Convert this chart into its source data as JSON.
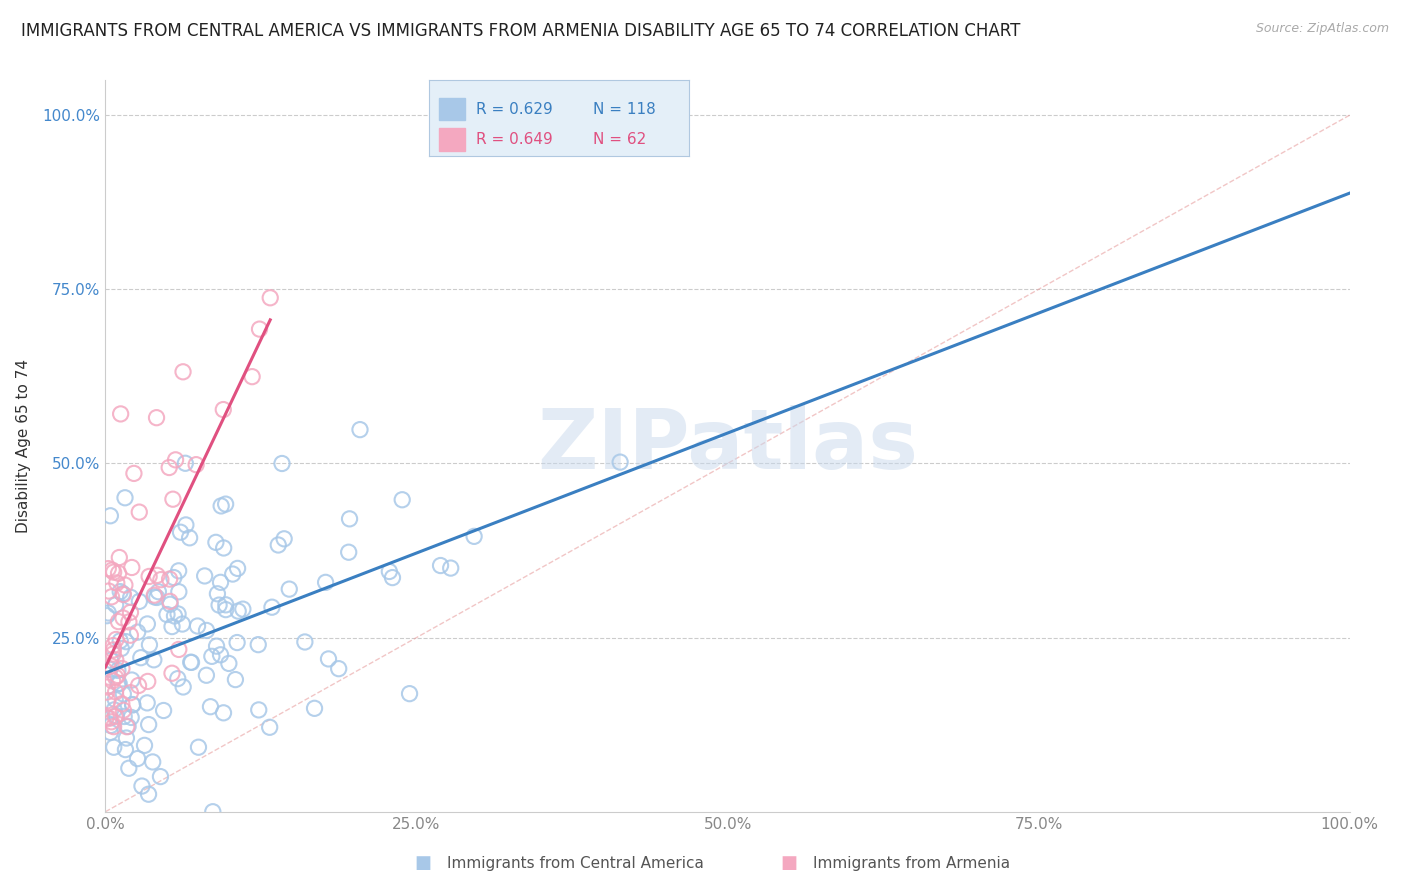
{
  "title": "IMMIGRANTS FROM CENTRAL AMERICA VS IMMIGRANTS FROM ARMENIA DISABILITY AGE 65 TO 74 CORRELATION CHART",
  "source": "Source: ZipAtlas.com",
  "ylabel": "Disability Age 65 to 74",
  "watermark_text": "ZIPatlas",
  "series": [
    {
      "label": "Immigrants from Central America",
      "R": 0.629,
      "N": 118,
      "scatter_color": "#a8c8e8",
      "line_color": "#3a7fc1",
      "seed": 101
    },
    {
      "label": "Immigrants from Armenia",
      "R": 0.649,
      "N": 62,
      "scatter_color": "#f4a8c0",
      "line_color": "#e05080",
      "seed": 202
    }
  ],
  "xlim": [
    0.0,
    1.0
  ],
  "ylim": [
    0.0,
    1.05
  ],
  "xticks": [
    0.0,
    0.25,
    0.5,
    0.75,
    1.0
  ],
  "yticks": [
    0.25,
    0.5,
    0.75,
    1.0
  ],
  "xticklabels": [
    "0.0%",
    "25.0%",
    "50.0%",
    "75.0%",
    "100.0%"
  ],
  "yticklabels": [
    "25.0%",
    "50.0%",
    "75.0%",
    "100.0%"
  ],
  "grid_color": "#cccccc",
  "background_color": "#ffffff",
  "legend_bg_color": "#ddeeff",
  "title_fontsize": 12,
  "axis_label_fontsize": 11,
  "tick_fontsize": 11,
  "tick_color_y": "#4488cc",
  "tick_color_x": "#888888",
  "watermark_color": "#c8d8ec",
  "watermark_alpha": 0.5,
  "watermark_fontsize": 60
}
